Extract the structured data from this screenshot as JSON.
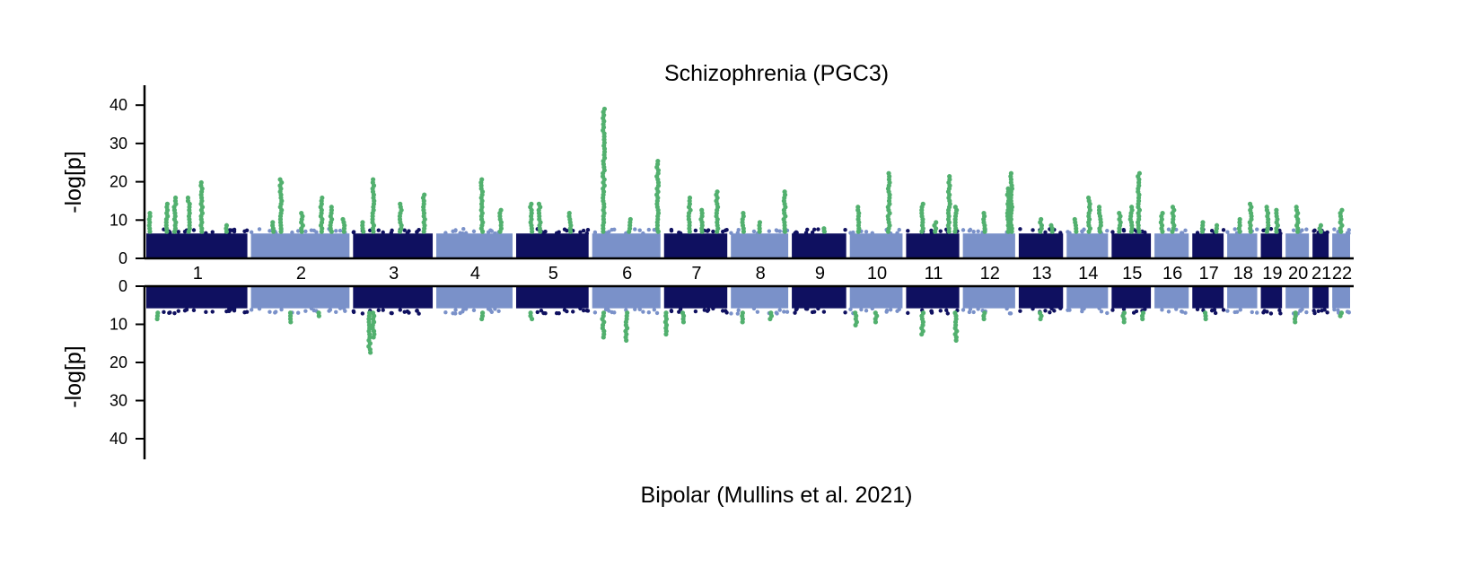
{
  "chart_data": {
    "type": "scatter",
    "subtype": "miami-plot",
    "top_panel": {
      "title": "Schizophrenia (PGC3)",
      "ylabel": "-log[p]",
      "yticks": [
        0,
        10,
        20,
        30,
        40
      ],
      "ylim": [
        0,
        45
      ]
    },
    "bottom_panel": {
      "title": "Bipolar (Mullins et al. 2021)",
      "ylabel": "-log[p]",
      "yticks": [
        0,
        10,
        20,
        30,
        40
      ],
      "ylim": [
        0,
        45
      ],
      "inverted": true
    },
    "chromosomes": [
      "1",
      "2",
      "3",
      "4",
      "5",
      "6",
      "7",
      "8",
      "9",
      "10",
      "11",
      "12",
      "13",
      "14",
      "15",
      "16",
      "17",
      "18",
      "19",
      "20",
      "21",
      "22"
    ],
    "chromosome_lengths_mb": [
      249,
      243,
      198,
      190,
      181,
      171,
      159,
      145,
      138,
      134,
      135,
      133,
      114,
      107,
      102,
      90,
      83,
      80,
      59,
      64,
      47,
      51
    ],
    "colors": {
      "odd_chromosome": "#0f1060",
      "even_chromosome": "#7a91c9",
      "significant": "#52b06e",
      "axis": "#000000"
    },
    "significance_threshold": 7.3,
    "top_peaks": [
      {
        "chr": "1",
        "pos": 0.02,
        "value": 12
      },
      {
        "chr": "1",
        "pos": 0.2,
        "value": 15
      },
      {
        "chr": "1",
        "pos": 0.28,
        "value": 16
      },
      {
        "chr": "1",
        "pos": 0.42,
        "value": 16
      },
      {
        "chr": "1",
        "pos": 0.55,
        "value": 20
      },
      {
        "chr": "1",
        "pos": 0.8,
        "value": 9
      },
      {
        "chr": "2",
        "pos": 0.22,
        "value": 10
      },
      {
        "chr": "2",
        "pos": 0.3,
        "value": 21
      },
      {
        "chr": "2",
        "pos": 0.52,
        "value": 12
      },
      {
        "chr": "2",
        "pos": 0.72,
        "value": 16
      },
      {
        "chr": "2",
        "pos": 0.82,
        "value": 14
      },
      {
        "chr": "2",
        "pos": 0.95,
        "value": 11
      },
      {
        "chr": "3",
        "pos": 0.12,
        "value": 10
      },
      {
        "chr": "3",
        "pos": 0.25,
        "value": 21
      },
      {
        "chr": "3",
        "pos": 0.6,
        "value": 15
      },
      {
        "chr": "3",
        "pos": 0.9,
        "value": 17
      },
      {
        "chr": "4",
        "pos": 0.6,
        "value": 21
      },
      {
        "chr": "4",
        "pos": 0.85,
        "value": 13
      },
      {
        "chr": "5",
        "pos": 0.2,
        "value": 15
      },
      {
        "chr": "5",
        "pos": 0.32,
        "value": 15
      },
      {
        "chr": "5",
        "pos": 0.75,
        "value": 12
      },
      {
        "chr": "6",
        "pos": 0.16,
        "value": 39
      },
      {
        "chr": "6",
        "pos": 0.55,
        "value": 11
      },
      {
        "chr": "6",
        "pos": 0.97,
        "value": 26
      },
      {
        "chr": "7",
        "pos": 0.4,
        "value": 16
      },
      {
        "chr": "7",
        "pos": 0.6,
        "value": 13
      },
      {
        "chr": "7",
        "pos": 0.85,
        "value": 18
      },
      {
        "chr": "8",
        "pos": 0.2,
        "value": 12
      },
      {
        "chr": "8",
        "pos": 0.5,
        "value": 10
      },
      {
        "chr": "8",
        "pos": 0.95,
        "value": 18
      },
      {
        "chr": "9",
        "pos": 0.6,
        "value": 8
      },
      {
        "chr": "10",
        "pos": 0.15,
        "value": 14
      },
      {
        "chr": "10",
        "pos": 0.75,
        "value": 23
      },
      {
        "chr": "11",
        "pos": 0.3,
        "value": 15
      },
      {
        "chr": "11",
        "pos": 0.55,
        "value": 10
      },
      {
        "chr": "11",
        "pos": 0.82,
        "value": 22
      },
      {
        "chr": "11",
        "pos": 0.95,
        "value": 14
      },
      {
        "chr": "12",
        "pos": 0.4,
        "value": 12
      },
      {
        "chr": "12",
        "pos": 0.88,
        "value": 19
      },
      {
        "chr": "12",
        "pos": 0.94,
        "value": 23
      },
      {
        "chr": "13",
        "pos": 0.5,
        "value": 11
      },
      {
        "chr": "13",
        "pos": 0.75,
        "value": 9
      },
      {
        "chr": "14",
        "pos": 0.2,
        "value": 11
      },
      {
        "chr": "14",
        "pos": 0.55,
        "value": 16
      },
      {
        "chr": "14",
        "pos": 0.82,
        "value": 14
      },
      {
        "chr": "15",
        "pos": 0.2,
        "value": 12
      },
      {
        "chr": "15",
        "pos": 0.5,
        "value": 14
      },
      {
        "chr": "15",
        "pos": 0.7,
        "value": 23
      },
      {
        "chr": "16",
        "pos": 0.2,
        "value": 12
      },
      {
        "chr": "16",
        "pos": 0.55,
        "value": 14
      },
      {
        "chr": "17",
        "pos": 0.3,
        "value": 10
      },
      {
        "chr": "17",
        "pos": 0.8,
        "value": 9
      },
      {
        "chr": "18",
        "pos": 0.4,
        "value": 11
      },
      {
        "chr": "18",
        "pos": 0.8,
        "value": 15
      },
      {
        "chr": "19",
        "pos": 0.3,
        "value": 14
      },
      {
        "chr": "19",
        "pos": 0.8,
        "value": 13
      },
      {
        "chr": "20",
        "pos": 0.5,
        "value": 14
      },
      {
        "chr": "21",
        "pos": 0.5,
        "value": 9
      },
      {
        "chr": "22",
        "pos": 0.5,
        "value": 13
      }
    ],
    "bottom_peaks": [
      {
        "chr": "1",
        "pos": 0.1,
        "value": 9
      },
      {
        "chr": "2",
        "pos": 0.4,
        "value": 10
      },
      {
        "chr": "2",
        "pos": 0.7,
        "value": 8
      },
      {
        "chr": "3",
        "pos": 0.2,
        "value": 18
      },
      {
        "chr": "3",
        "pos": 0.25,
        "value": 14
      },
      {
        "chr": "4",
        "pos": 0.6,
        "value": 9
      },
      {
        "chr": "5",
        "pos": 0.2,
        "value": 9
      },
      {
        "chr": "6",
        "pos": 0.15,
        "value": 14
      },
      {
        "chr": "6",
        "pos": 0.5,
        "value": 15
      },
      {
        "chr": "7",
        "pos": 0.02,
        "value": 13
      },
      {
        "chr": "7",
        "pos": 0.3,
        "value": 10
      },
      {
        "chr": "8",
        "pos": 0.2,
        "value": 10
      },
      {
        "chr": "8",
        "pos": 0.7,
        "value": 9
      },
      {
        "chr": "10",
        "pos": 0.1,
        "value": 11
      },
      {
        "chr": "10",
        "pos": 0.5,
        "value": 10
      },
      {
        "chr": "11",
        "pos": 0.3,
        "value": 13
      },
      {
        "chr": "11",
        "pos": 0.95,
        "value": 15
      },
      {
        "chr": "12",
        "pos": 0.4,
        "value": 9
      },
      {
        "chr": "13",
        "pos": 0.5,
        "value": 9
      },
      {
        "chr": "15",
        "pos": 0.3,
        "value": 10
      },
      {
        "chr": "15",
        "pos": 0.8,
        "value": 9
      },
      {
        "chr": "17",
        "pos": 0.4,
        "value": 9
      },
      {
        "chr": "20",
        "pos": 0.4,
        "value": 10
      },
      {
        "chr": "22",
        "pos": 0.5,
        "value": 8
      }
    ]
  }
}
